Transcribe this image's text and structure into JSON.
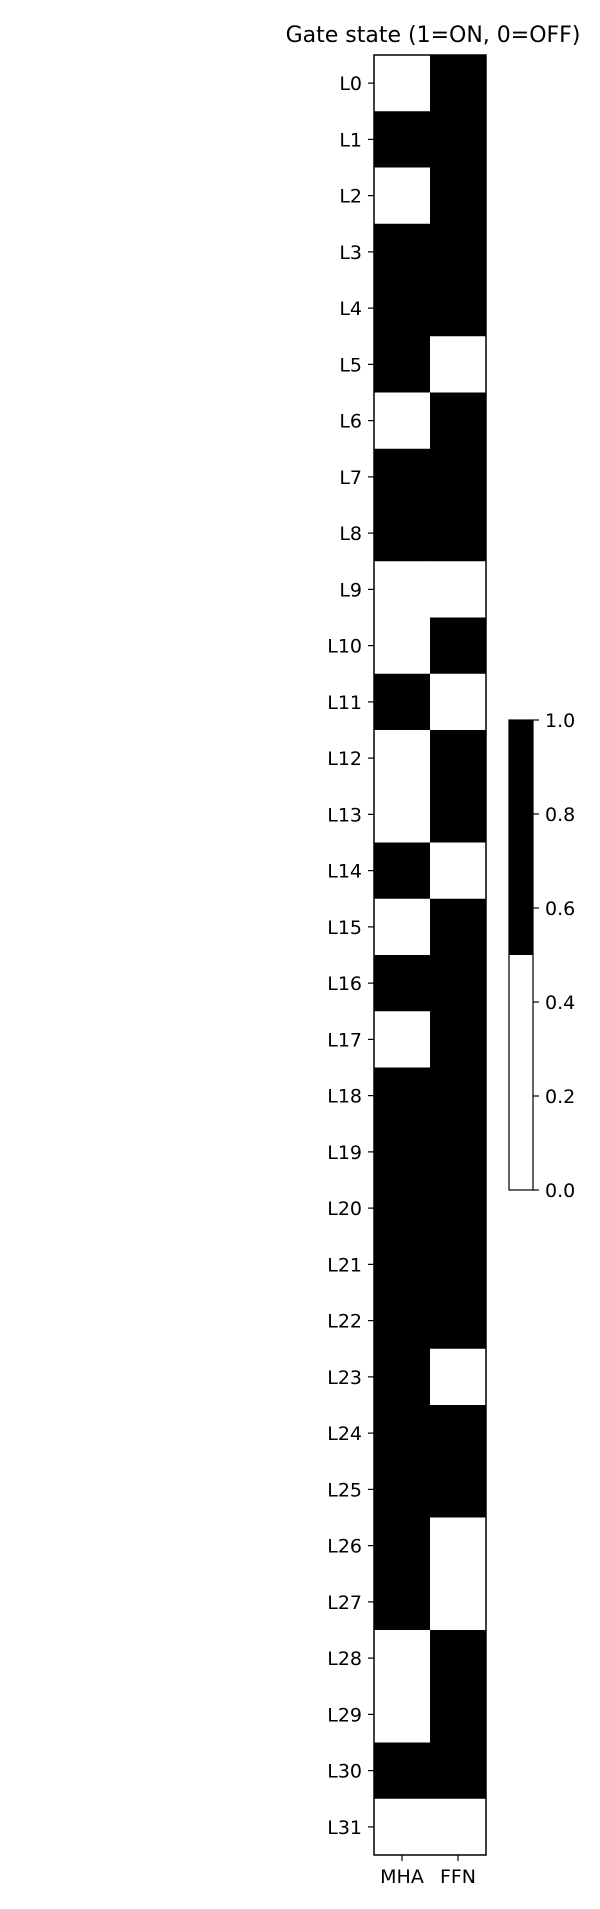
{
  "chart_data": {
    "type": "heatmap",
    "title": "Gate state (1=ON, 0=OFF)",
    "xlabel": "",
    "ylabel": "",
    "columns": [
      "MHA",
      "FFN"
    ],
    "rows": [
      "L0",
      "L1",
      "L2",
      "L3",
      "L4",
      "L5",
      "L6",
      "L7",
      "L8",
      "L9",
      "L10",
      "L11",
      "L12",
      "L13",
      "L14",
      "L15",
      "L16",
      "L17",
      "L18",
      "L19",
      "L20",
      "L21",
      "L22",
      "L23",
      "L24",
      "L25",
      "L26",
      "L27",
      "L28",
      "L29",
      "L30",
      "L31"
    ],
    "values": [
      [
        0,
        1
      ],
      [
        1,
        1
      ],
      [
        0,
        1
      ],
      [
        1,
        1
      ],
      [
        1,
        1
      ],
      [
        1,
        0
      ],
      [
        0,
        1
      ],
      [
        1,
        1
      ],
      [
        1,
        1
      ],
      [
        0,
        0
      ],
      [
        0,
        1
      ],
      [
        1,
        0
      ],
      [
        0,
        1
      ],
      [
        0,
        1
      ],
      [
        1,
        0
      ],
      [
        0,
        1
      ],
      [
        1,
        1
      ],
      [
        0,
        1
      ],
      [
        1,
        1
      ],
      [
        1,
        1
      ],
      [
        1,
        1
      ],
      [
        1,
        1
      ],
      [
        1,
        1
      ],
      [
        1,
        0
      ],
      [
        1,
        1
      ],
      [
        1,
        1
      ],
      [
        1,
        0
      ],
      [
        1,
        0
      ],
      [
        0,
        1
      ],
      [
        0,
        1
      ],
      [
        1,
        1
      ],
      [
        0,
        0
      ]
    ],
    "colormap": {
      "low_color": "#ffffff",
      "high_color": "#000000"
    },
    "colorbar": {
      "range": [
        0.0,
        1.0
      ],
      "ticks": [
        "0.0",
        "0.2",
        "0.4",
        "0.6",
        "0.8",
        "1.0"
      ]
    },
    "grid": false
  }
}
